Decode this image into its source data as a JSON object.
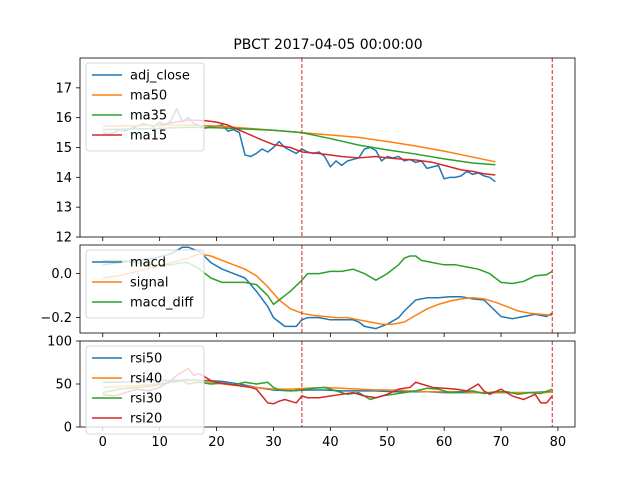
{
  "chart_data": {
    "type": "line",
    "title": "PBCT 2017-04-05 00:00:00",
    "xlim": [
      -4,
      83
    ],
    "xticks": [
      0,
      10,
      20,
      30,
      40,
      50,
      60,
      70,
      80
    ],
    "xtick_labels": [
      "0",
      "10",
      "20",
      "30",
      "40",
      "50",
      "60",
      "70",
      "80"
    ],
    "vlines": [
      35,
      79
    ],
    "vline_color": "#d62728",
    "panels": [
      {
        "ylim": [
          12,
          18
        ],
        "yticks": [
          12,
          13,
          14,
          15,
          16,
          17
        ],
        "ytick_labels": [
          "12",
          "13",
          "14",
          "15",
          "16",
          "17"
        ],
        "legend_position": "upper-left",
        "series": [
          {
            "name": "adj_close",
            "color": "#1f77b4",
            "x": [
              0,
              1,
              2,
              3,
              4,
              5,
              6,
              7,
              8,
              9,
              10,
              11,
              12,
              13,
              14,
              15,
              16,
              17,
              18,
              19,
              20,
              21,
              22,
              23,
              24,
              25,
              26,
              27,
              28,
              29,
              30,
              31,
              32,
              33,
              34,
              35,
              36,
              37,
              38,
              39,
              40,
              41,
              42,
              43,
              44,
              45,
              46,
              47,
              48,
              49,
              50,
              51,
              52,
              53,
              54,
              55,
              56,
              57,
              58,
              59,
              60,
              61,
              62,
              63,
              64,
              65,
              66,
              67,
              68,
              69
            ],
            "values": [
              15.5,
              15.45,
              15.5,
              15.6,
              15.55,
              15.65,
              15.7,
              15.8,
              15.75,
              15.7,
              15.85,
              15.75,
              15.9,
              16.3,
              15.85,
              16.0,
              15.8,
              15.75,
              15.65,
              15.7,
              15.72,
              15.75,
              15.55,
              15.6,
              15.5,
              14.75,
              14.7,
              14.8,
              14.95,
              14.85,
              15.0,
              15.2,
              15.0,
              14.9,
              14.8,
              14.95,
              14.85,
              14.8,
              14.85,
              14.7,
              14.35,
              14.55,
              14.4,
              14.55,
              14.6,
              14.65,
              14.95,
              15.0,
              14.9,
              14.55,
              14.7,
              14.65,
              14.7,
              14.55,
              14.6,
              14.5,
              14.55,
              14.3,
              14.35,
              14.4,
              13.95,
              14.0,
              14.0,
              14.05,
              14.2,
              14.1,
              14.15,
              14.05,
              14.0,
              13.85
            ]
          },
          {
            "name": "ma50",
            "color": "#ff7f0e",
            "x": [
              0,
              5,
              10,
              15,
              20,
              25,
              30,
              35,
              40,
              45,
              50,
              55,
              60,
              65,
              69
            ],
            "values": [
              15.72,
              15.73,
              15.74,
              15.75,
              15.72,
              15.65,
              15.58,
              15.5,
              15.42,
              15.34,
              15.2,
              15.05,
              14.88,
              14.68,
              14.52
            ]
          },
          {
            "name": "ma35",
            "color": "#2ca02c",
            "x": [
              0,
              5,
              10,
              15,
              20,
              25,
              30,
              35,
              40,
              45,
              50,
              55,
              60,
              65,
              69
            ],
            "values": [
              15.6,
              15.62,
              15.64,
              15.68,
              15.66,
              15.62,
              15.58,
              15.5,
              15.3,
              15.08,
              14.92,
              14.78,
              14.62,
              14.48,
              14.42
            ]
          },
          {
            "name": "ma15",
            "color": "#d62728",
            "x": [
              10,
              12,
              15,
              18,
              20,
              22,
              25,
              28,
              30,
              33,
              35,
              38,
              40,
              42,
              45,
              48,
              50,
              53,
              55,
              58,
              60,
              63,
              65,
              67,
              69
            ],
            "values": [
              15.75,
              15.82,
              15.92,
              15.9,
              15.85,
              15.75,
              15.5,
              15.25,
              15.1,
              15.0,
              14.85,
              14.8,
              14.75,
              14.7,
              14.65,
              14.7,
              14.65,
              14.6,
              14.58,
              14.5,
              14.4,
              14.25,
              14.2,
              14.12,
              14.08
            ]
          }
        ]
      },
      {
        "ylim": [
          -0.27,
          0.13
        ],
        "yticks": [
          -0.2,
          0.0
        ],
        "ytick_labels": [
          "−0.2",
          "0.0"
        ],
        "legend_position": "upper-left",
        "series": [
          {
            "name": "macd",
            "color": "#1f77b4",
            "x": [
              0,
              3,
              6,
              9,
              12,
              14,
              15,
              17,
              19,
              21,
              23,
              25,
              27,
              29,
              30,
              31,
              32,
              33,
              34,
              35,
              36,
              38,
              40,
              42,
              44,
              45,
              46,
              47,
              48,
              50,
              52,
              53,
              55,
              57,
              59,
              61,
              63,
              65,
              67,
              69,
              70,
              72,
              74,
              76,
              78,
              79
            ],
            "values": [
              0.04,
              0.05,
              0.06,
              0.07,
              0.09,
              0.12,
              0.12,
              0.1,
              0.05,
              0.02,
              0.0,
              -0.02,
              -0.08,
              -0.15,
              -0.2,
              -0.22,
              -0.24,
              -0.24,
              -0.24,
              -0.21,
              -0.2,
              -0.2,
              -0.21,
              -0.21,
              -0.21,
              -0.22,
              -0.24,
              -0.245,
              -0.25,
              -0.23,
              -0.2,
              -0.17,
              -0.12,
              -0.11,
              -0.11,
              -0.105,
              -0.105,
              -0.115,
              -0.12,
              -0.17,
              -0.195,
              -0.205,
              -0.195,
              -0.185,
              -0.195,
              -0.18
            ]
          },
          {
            "name": "signal",
            "color": "#ff7f0e",
            "x": [
              0,
              3,
              6,
              9,
              12,
              15,
              17,
              19,
              21,
              23,
              25,
              27,
              29,
              31,
              33,
              35,
              37,
              39,
              41,
              43,
              45,
              47,
              49,
              51,
              53,
              55,
              57,
              59,
              61,
              63,
              65,
              67,
              69,
              71,
              73,
              75,
              77,
              79
            ],
            "values": [
              -0.02,
              -0.01,
              0.01,
              0.03,
              0.05,
              0.07,
              0.09,
              0.08,
              0.06,
              0.04,
              0.02,
              -0.01,
              -0.06,
              -0.12,
              -0.16,
              -0.18,
              -0.19,
              -0.195,
              -0.2,
              -0.2,
              -0.21,
              -0.22,
              -0.23,
              -0.23,
              -0.22,
              -0.19,
              -0.16,
              -0.14,
              -0.125,
              -0.115,
              -0.11,
              -0.115,
              -0.13,
              -0.15,
              -0.17,
              -0.18,
              -0.185,
              -0.19
            ]
          },
          {
            "name": "macd_diff",
            "color": "#2ca02c",
            "x": [
              0,
              3,
              6,
              9,
              12,
              14,
              15,
              17,
              19,
              21,
              23,
              25,
              27,
              29,
              30,
              31,
              33,
              35,
              36,
              38,
              40,
              42,
              44,
              46,
              48,
              50,
              52,
              53,
              54,
              55,
              56,
              58,
              60,
              62,
              64,
              66,
              68,
              70,
              72,
              74,
              76,
              78,
              79
            ],
            "values": [
              0.06,
              0.06,
              0.05,
              0.04,
              0.04,
              0.05,
              0.05,
              0.02,
              -0.02,
              -0.04,
              -0.04,
              -0.04,
              -0.05,
              -0.1,
              -0.14,
              -0.12,
              -0.08,
              -0.03,
              0.0,
              0.0,
              0.01,
              0.01,
              0.02,
              0.0,
              -0.03,
              0.0,
              0.04,
              0.07,
              0.08,
              0.08,
              0.06,
              0.05,
              0.04,
              0.04,
              0.03,
              0.02,
              0.0,
              -0.04,
              -0.045,
              -0.035,
              -0.01,
              -0.005,
              0.01
            ]
          }
        ]
      },
      {
        "ylim": [
          0,
          100
        ],
        "yticks": [
          0,
          50,
          100
        ],
        "ytick_labels": [
          "0",
          "50",
          "100"
        ],
        "legend_position": "upper-left",
        "series": [
          {
            "name": "rsi50",
            "color": "#1f77b4",
            "x": [
              0,
              3,
              6,
              9,
              12,
              15,
              18,
              21,
              24,
              27,
              30,
              33,
              36,
              39,
              42,
              45,
              48,
              51,
              54,
              57,
              60,
              63,
              66,
              69,
              72,
              75,
              78,
              79
            ],
            "values": [
              52,
              52,
              53,
              54,
              54,
              55,
              54,
              53,
              50,
              46,
              43,
              42,
              43,
              43,
              42,
              42,
              42,
              41,
              41,
              41,
              40,
              40,
              40,
              40,
              40,
              40,
              41,
              41
            ]
          },
          {
            "name": "rsi40",
            "color": "#ff7f0e",
            "x": [
              0,
              3,
              6,
              9,
              12,
              15,
              18,
              21,
              24,
              27,
              30,
              33,
              36,
              39,
              42,
              45,
              48,
              51,
              54,
              57,
              60,
              63,
              66,
              69,
              72,
              75,
              78,
              79
            ],
            "values": [
              46,
              47,
              48,
              50,
              52,
              54,
              53,
              50,
              48,
              46,
              44,
              44,
              45,
              46,
              45,
              44,
              43,
              43,
              42,
              41,
              41,
              41,
              40,
              40,
              40,
              40,
              40,
              41
            ]
          },
          {
            "name": "rsi30",
            "color": "#2ca02c",
            "x": [
              0,
              3,
              6,
              9,
              12,
              14,
              15,
              17,
              19,
              21,
              23,
              25,
              27,
              29,
              30,
              31,
              33,
              35,
              37,
              39,
              41,
              43,
              45,
              47,
              49,
              51,
              53,
              55,
              57,
              59,
              61,
              63,
              65,
              67,
              69,
              71,
              73,
              75,
              77,
              79
            ],
            "values": [
              40,
              44,
              46,
              48,
              52,
              54,
              50,
              52,
              50,
              51,
              49,
              52,
              50,
              52,
              46,
              43,
              42,
              43,
              45,
              46,
              42,
              38,
              40,
              32,
              36,
              38,
              40,
              42,
              45,
              44,
              40,
              41,
              42,
              39,
              41,
              41,
              38,
              40,
              39,
              44
            ]
          },
          {
            "name": "rsi20",
            "color": "#d62728",
            "x": [
              0,
              2,
              4,
              6,
              8,
              10,
              12,
              13,
              14,
              15,
              16,
              17,
              18,
              19,
              20,
              22,
              24,
              26,
              27,
              28,
              29,
              30,
              31,
              32,
              33,
              34,
              35,
              36,
              38,
              40,
              42,
              44,
              46,
              48,
              50,
              52,
              54,
              55,
              56,
              58,
              60,
              62,
              64,
              66,
              67,
              68,
              70,
              72,
              74,
              76,
              77,
              78,
              79
            ],
            "values": [
              38,
              36,
              40,
              44,
              42,
              46,
              54,
              60,
              64,
              68,
              60,
              62,
              58,
              54,
              52,
              50,
              48,
              46,
              44,
              36,
              28,
              27,
              30,
              32,
              30,
              28,
              36,
              34,
              34,
              36,
              38,
              40,
              36,
              34,
              38,
              44,
              46,
              52,
              50,
              46,
              45,
              44,
              42,
              50,
              42,
              38,
              44,
              36,
              32,
              38,
              28,
              28,
              36
            ]
          }
        ]
      }
    ]
  }
}
